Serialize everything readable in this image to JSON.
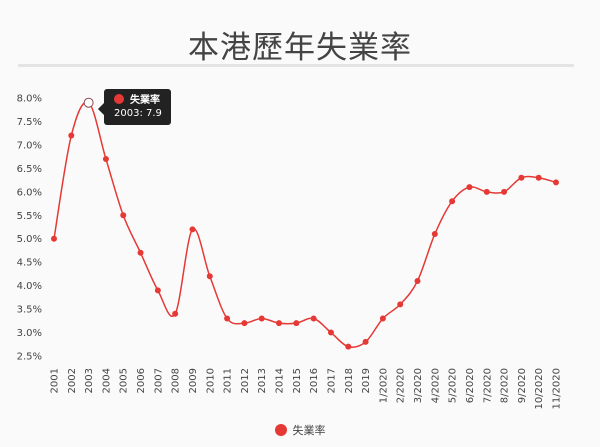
{
  "chart_data": {
    "type": "line",
    "title": "本港歷年失業率",
    "xlabel": "",
    "ylabel": "",
    "categories": [
      "2001",
      "2002",
      "2003",
      "2004",
      "2005",
      "2006",
      "2007",
      "2008",
      "2009",
      "2010",
      "2011",
      "2012",
      "2013",
      "2014",
      "2015",
      "2016",
      "2017",
      "2018",
      "2019",
      "1/2020",
      "2/2020",
      "3/2020",
      "4/2020",
      "5/2020",
      "6/2020",
      "7/2020",
      "8/2020",
      "9/2020",
      "10/2020",
      "11/2020"
    ],
    "series": [
      {
        "name": "失業率",
        "color": "#e53935",
        "values": [
          5.0,
          7.2,
          7.9,
          6.7,
          5.5,
          4.7,
          3.9,
          3.4,
          5.2,
          4.2,
          3.3,
          3.2,
          3.3,
          3.2,
          3.2,
          3.3,
          3.0,
          2.7,
          2.8,
          3.3,
          3.6,
          4.1,
          5.1,
          5.8,
          6.1,
          6.0,
          6.0,
          6.3,
          6.3,
          6.2
        ]
      }
    ],
    "ylim": [
      2.5,
      8.0
    ],
    "yticks": [
      "2.5%",
      "3.0%",
      "3.5%",
      "4.0%",
      "4.5%",
      "5.0%",
      "5.5%",
      "6.0%",
      "6.5%",
      "7.0%",
      "7.5%",
      "8.0%"
    ],
    "grid": false,
    "legend": "bottom",
    "tooltip": {
      "series": "失業率",
      "text": "2003: 7.9",
      "index": 2
    }
  }
}
